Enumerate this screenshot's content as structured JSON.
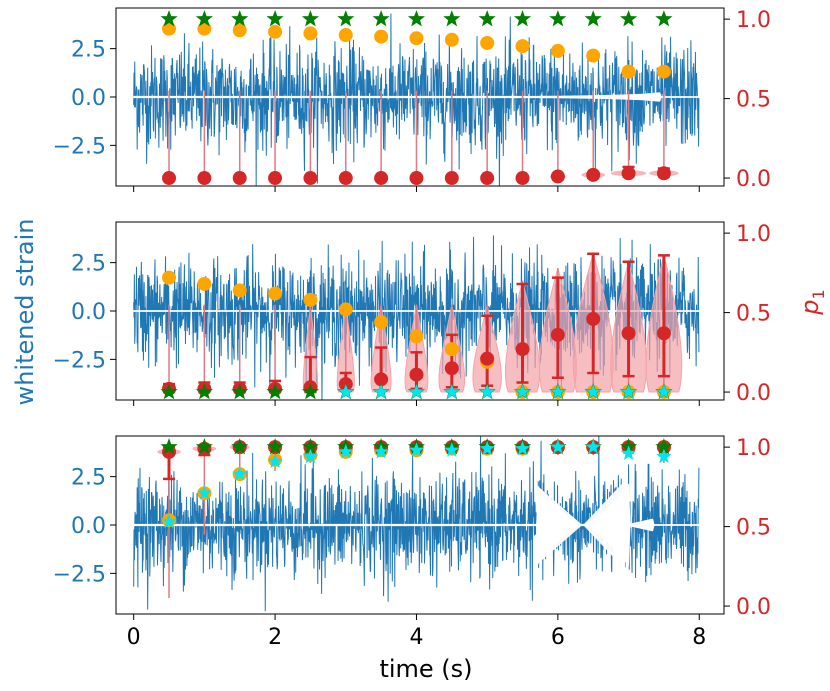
{
  "chart_data": {
    "type": "scatter",
    "xlabel": "time (s)",
    "ylabel_left": "whitened strain",
    "ylabel_right": "p",
    "ylabel_right_subscript": "1",
    "xlim": [
      -0.25,
      8.35
    ],
    "x_ticks": [
      0,
      2,
      4,
      6,
      8
    ],
    "x_tick_labels": [
      "0",
      "2",
      "4",
      "6",
      "8"
    ],
    "left_ticks": [
      2.5,
      0.0,
      -2.5
    ],
    "left_tick_labels": [
      "2.5",
      "0.0",
      "−2.5"
    ],
    "right_ticks": [
      1.0,
      0.5,
      0.0
    ],
    "right_tick_labels": [
      "1.0",
      "0.5",
      "0.0"
    ],
    "colors": {
      "strain": "#1f77b4",
      "template": "#ffffff",
      "violin": "#f4a3a8",
      "median": "#d62728",
      "orange": "#ffa500",
      "star_green": "#008000",
      "star_cyan": "#00e5ee",
      "right_axis": "#d62728",
      "left_axis": "#1f77b4"
    },
    "x_points": [
      0.5,
      1.0,
      1.5,
      2.0,
      2.5,
      3.0,
      3.5,
      4.0,
      4.5,
      5.0,
      5.5,
      6.0,
      6.5,
      7.0,
      7.5
    ],
    "panels": [
      {
        "ylim_left": [
          -4.6,
          4.6
        ],
        "ylim_right": [
          -0.05,
          1.07
        ],
        "strain_amplitude": 1.55,
        "template": "chirp-end",
        "orange": [
          0.94,
          0.94,
          0.93,
          0.92,
          0.91,
          0.9,
          0.89,
          0.88,
          0.87,
          0.85,
          0.83,
          0.8,
          0.77,
          0.67,
          0.67
        ],
        "green_stars": [
          1.0,
          1.0,
          1.0,
          1.0,
          1.0,
          1.0,
          1.0,
          1.0,
          1.0,
          1.0,
          1.0,
          1.0,
          1.0,
          1.0,
          1.0
        ],
        "cyan_stars": [],
        "red_median": [
          0.0,
          0.0,
          0.0,
          0.0,
          0.0,
          0.0,
          0.0,
          0.0,
          0.0,
          0.0,
          0.0,
          0.01,
          0.02,
          0.03,
          0.03
        ],
        "red_err_low": [
          0.0,
          0.0,
          0.0,
          0.0,
          0.0,
          0.0,
          0.0,
          0.0,
          0.0,
          0.0,
          0.0,
          0.0,
          0.0,
          0.01,
          0.01
        ],
        "red_err_high": [
          0.0,
          0.0,
          0.0,
          0.0,
          0.0,
          0.0,
          0.0,
          0.0,
          0.0,
          0.0,
          0.0,
          0.02,
          0.03,
          0.07,
          0.06
        ],
        "whisker_top": [
          0.55,
          0.55,
          0.55,
          0.55,
          0.55,
          0.55,
          0.55,
          0.55,
          0.55,
          0.55,
          0.55,
          0.55,
          0.55,
          0.55,
          0.55
        ],
        "violin_half_width": [
          0.05,
          0.05,
          0.05,
          0.05,
          0.05,
          0.05,
          0.05,
          0.05,
          0.05,
          0.05,
          0.06,
          0.08,
          0.12,
          0.18,
          0.15
        ]
      },
      {
        "ylim_left": [
          -4.6,
          4.6
        ],
        "ylim_right": [
          -0.05,
          1.07
        ],
        "strain_amplitude": 1.55,
        "template": "none",
        "orange": [
          0.72,
          0.68,
          0.64,
          0.62,
          0.58,
          0.52,
          0.44,
          0.35,
          0.27,
          0.19,
          0.0,
          0.0,
          0.0,
          0.0,
          0.0
        ],
        "green_stars": [
          0.0,
          0.0,
          0.0,
          0.0,
          0.0,
          0.0,
          0.0,
          0.0,
          0.0,
          0.0,
          0.0,
          0.0,
          0.0,
          0.0,
          0.0
        ],
        "cyan_stars": [
          null,
          null,
          null,
          null,
          null,
          0.0,
          0.0,
          0.0,
          0.0,
          0.0,
          0.0,
          0.0,
          0.0,
          0.0,
          0.0
        ],
        "red_median": [
          0.02,
          0.02,
          0.02,
          0.02,
          0.03,
          0.05,
          0.08,
          0.11,
          0.15,
          0.21,
          0.27,
          0.36,
          0.46,
          0.37,
          0.37
        ],
        "red_err_low": [
          0.0,
          0.0,
          0.0,
          0.0,
          0.0,
          0.01,
          0.01,
          0.02,
          0.03,
          0.04,
          0.06,
          0.09,
          0.12,
          0.1,
          0.1
        ],
        "red_err_high": [
          0.05,
          0.06,
          0.06,
          0.07,
          0.22,
          0.12,
          0.28,
          0.25,
          0.36,
          0.48,
          0.68,
          0.72,
          0.87,
          0.82,
          0.86
        ],
        "whisker_top": [
          0.55,
          0.55,
          0.55,
          0.55,
          0.55,
          0.55,
          0.55,
          0.55,
          0.55,
          0.55,
          0.7,
          0.78,
          0.87,
          0.82,
          0.86
        ],
        "violin_half_width": [
          0.06,
          0.06,
          0.07,
          0.07,
          0.1,
          0.12,
          0.14,
          0.16,
          0.18,
          0.2,
          0.24,
          0.26,
          0.28,
          0.25,
          0.25
        ]
      },
      {
        "ylim_left": [
          -4.6,
          4.6
        ],
        "ylim_right": [
          -0.05,
          1.07
        ],
        "strain_amplitude": 1.55,
        "template": "merger",
        "orange": [
          0.54,
          0.71,
          0.83,
          0.92,
          0.95,
          0.97,
          0.98,
          0.98,
          0.99,
          0.99,
          0.99,
          1.0,
          1.0,
          1.0,
          1.0
        ],
        "green_stars": [
          1.0,
          1.0,
          1.0,
          1.0,
          1.0,
          1.0,
          1.0,
          1.0,
          1.0,
          1.0,
          1.0,
          1.0,
          1.0,
          1.0,
          1.0
        ],
        "cyan_stars": [
          0.53,
          0.71,
          0.83,
          0.91,
          0.94,
          0.97,
          0.97,
          0.98,
          0.98,
          0.99,
          0.99,
          1.0,
          1.0,
          0.96,
          0.94
        ],
        "red_median": [
          0.97,
          0.99,
          1.0,
          1.0,
          1.0,
          1.0,
          1.0,
          1.0,
          1.0,
          1.0,
          1.0,
          1.0,
          1.0,
          1.0,
          1.0
        ],
        "red_err_low": [
          0.8,
          0.95,
          1.0,
          1.0,
          1.0,
          1.0,
          1.0,
          1.0,
          1.0,
          1.0,
          1.0,
          1.0,
          1.0,
          1.0,
          1.0
        ],
        "red_err_high": [
          1.0,
          1.0,
          1.0,
          1.0,
          1.0,
          1.0,
          1.0,
          1.0,
          1.0,
          1.0,
          1.0,
          1.0,
          1.0,
          1.0,
          1.0
        ],
        "whisker_bottom": [
          0.05,
          0.45,
          0.85,
          0.85,
          0.9,
          0.95,
          0.95,
          0.95,
          0.95,
          0.95,
          0.95,
          0.95,
          0.95,
          0.95,
          0.9
        ],
        "violin_half_width": [
          0.12,
          0.12,
          0.1,
          0.06,
          0.06,
          0.06,
          0.06,
          0.06,
          0.06,
          0.06,
          0.06,
          0.06,
          0.06,
          0.06,
          0.06
        ]
      }
    ]
  }
}
